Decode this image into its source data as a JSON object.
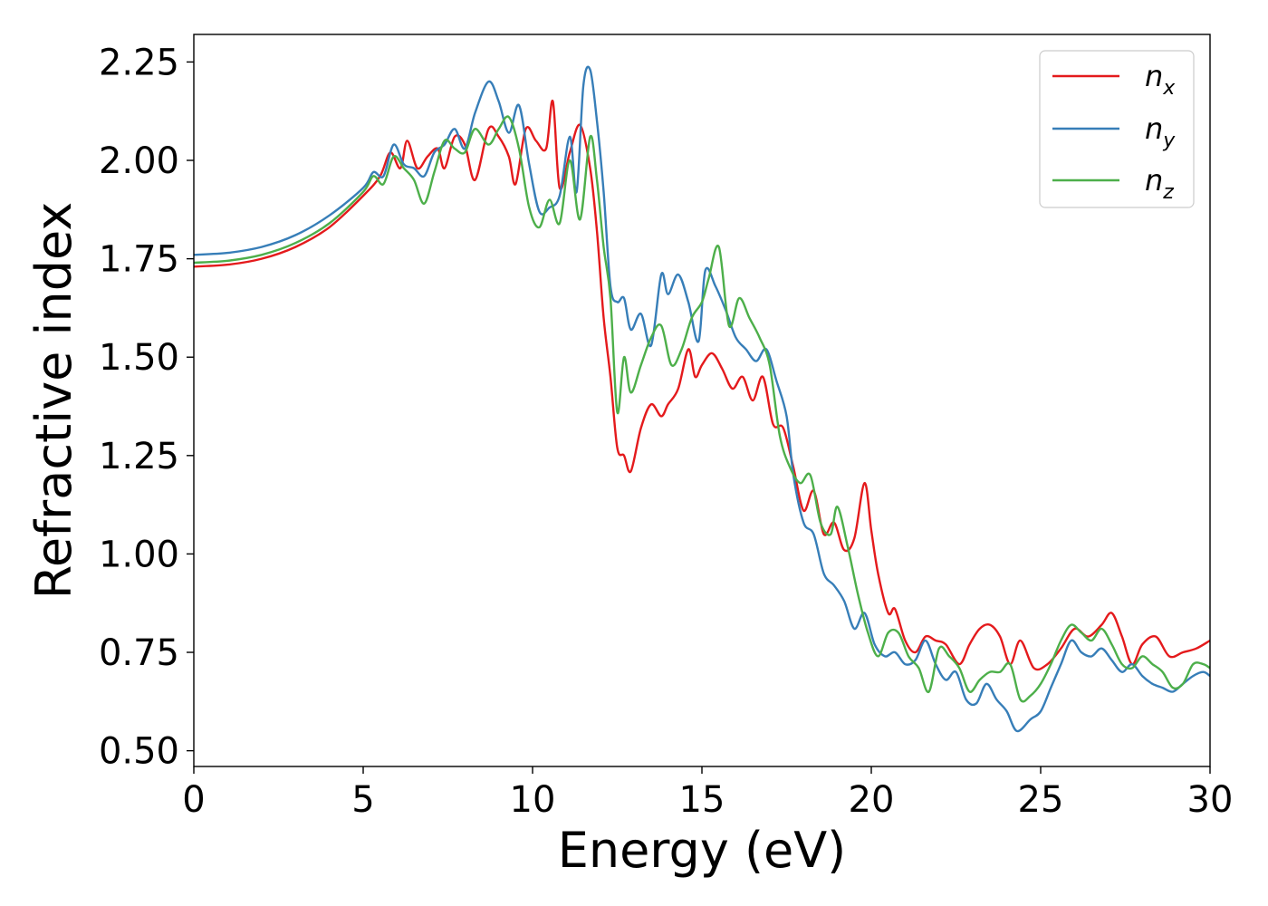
{
  "chart_data": {
    "type": "line",
    "title": "",
    "xlabel": "Energy (eV)",
    "ylabel": "Refractive index",
    "xlim": [
      0,
      30
    ],
    "ylim": [
      0.46,
      2.32
    ],
    "xticks": [
      0,
      5,
      10,
      15,
      20,
      25,
      30
    ],
    "xtick_labels": [
      "0",
      "5",
      "10",
      "15",
      "20",
      "25",
      "30"
    ],
    "yticks": [
      0.5,
      0.75,
      1.0,
      1.25,
      1.5,
      1.75,
      2.0,
      2.25
    ],
    "ytick_labels": [
      "0.50",
      "0.75",
      "1.00",
      "1.25",
      "1.50",
      "1.75",
      "2.00",
      "2.25"
    ],
    "grid": false,
    "legend_position": "top-right",
    "series": [
      {
        "name": "n",
        "sub": "x",
        "color": "#e41a1c",
        "points": [
          [
            0,
            1.73
          ],
          [
            1,
            1.735
          ],
          [
            2,
            1.75
          ],
          [
            3,
            1.78
          ],
          [
            4,
            1.83
          ],
          [
            5,
            1.91
          ],
          [
            5.5,
            1.96
          ],
          [
            5.8,
            2.02
          ],
          [
            6.1,
            1.98
          ],
          [
            6.3,
            2.05
          ],
          [
            6.6,
            1.98
          ],
          [
            6.9,
            2.01
          ],
          [
            7.2,
            2.03
          ],
          [
            7.4,
            1.98
          ],
          [
            7.7,
            2.06
          ],
          [
            8.0,
            2.04
          ],
          [
            8.3,
            1.95
          ],
          [
            8.7,
            2.08
          ],
          [
            9.0,
            2.06
          ],
          [
            9.3,
            2.01
          ],
          [
            9.5,
            1.94
          ],
          [
            9.8,
            2.08
          ],
          [
            10.1,
            2.05
          ],
          [
            10.4,
            2.03
          ],
          [
            10.6,
            2.15
          ],
          [
            10.8,
            1.93
          ],
          [
            11.1,
            2.02
          ],
          [
            11.4,
            2.09
          ],
          [
            11.7,
            1.98
          ],
          [
            11.9,
            1.82
          ],
          [
            12.1,
            1.6
          ],
          [
            12.3,
            1.45
          ],
          [
            12.5,
            1.27
          ],
          [
            12.7,
            1.25
          ],
          [
            12.9,
            1.21
          ],
          [
            13.2,
            1.32
          ],
          [
            13.5,
            1.38
          ],
          [
            13.8,
            1.35
          ],
          [
            14.0,
            1.38
          ],
          [
            14.3,
            1.42
          ],
          [
            14.6,
            1.52
          ],
          [
            14.8,
            1.45
          ],
          [
            15.0,
            1.48
          ],
          [
            15.3,
            1.51
          ],
          [
            15.6,
            1.47
          ],
          [
            15.9,
            1.42
          ],
          [
            16.2,
            1.45
          ],
          [
            16.5,
            1.39
          ],
          [
            16.8,
            1.45
          ],
          [
            17.1,
            1.33
          ],
          [
            17.4,
            1.32
          ],
          [
            17.7,
            1.22
          ],
          [
            18.0,
            1.11
          ],
          [
            18.3,
            1.16
          ],
          [
            18.6,
            1.05
          ],
          [
            18.9,
            1.08
          ],
          [
            19.2,
            1.01
          ],
          [
            19.5,
            1.04
          ],
          [
            19.8,
            1.18
          ],
          [
            20.0,
            1.06
          ],
          [
            20.2,
            0.95
          ],
          [
            20.5,
            0.85
          ],
          [
            20.7,
            0.86
          ],
          [
            21.0,
            0.78
          ],
          [
            21.3,
            0.75
          ],
          [
            21.6,
            0.79
          ],
          [
            21.9,
            0.78
          ],
          [
            22.2,
            0.77
          ],
          [
            22.6,
            0.72
          ],
          [
            22.9,
            0.77
          ],
          [
            23.2,
            0.81
          ],
          [
            23.5,
            0.82
          ],
          [
            23.8,
            0.79
          ],
          [
            24.1,
            0.72
          ],
          [
            24.4,
            0.78
          ],
          [
            24.8,
            0.71
          ],
          [
            25.2,
            0.72
          ],
          [
            25.6,
            0.76
          ],
          [
            26.0,
            0.81
          ],
          [
            26.4,
            0.79
          ],
          [
            26.8,
            0.82
          ],
          [
            27.1,
            0.85
          ],
          [
            27.4,
            0.79
          ],
          [
            27.7,
            0.72
          ],
          [
            28.0,
            0.77
          ],
          [
            28.4,
            0.79
          ],
          [
            28.8,
            0.74
          ],
          [
            29.2,
            0.75
          ],
          [
            29.6,
            0.76
          ],
          [
            30.0,
            0.78
          ]
        ]
      },
      {
        "name": "n",
        "sub": "y",
        "color": "#377eb8",
        "points": [
          [
            0,
            1.76
          ],
          [
            1,
            1.765
          ],
          [
            2,
            1.78
          ],
          [
            3,
            1.81
          ],
          [
            4,
            1.86
          ],
          [
            5,
            1.93
          ],
          [
            5.3,
            1.97
          ],
          [
            5.6,
            1.96
          ],
          [
            5.9,
            2.04
          ],
          [
            6.2,
            1.99
          ],
          [
            6.5,
            1.98
          ],
          [
            6.8,
            1.96
          ],
          [
            7.1,
            2.02
          ],
          [
            7.4,
            2.04
          ],
          [
            7.7,
            2.08
          ],
          [
            8.0,
            2.03
          ],
          [
            8.3,
            2.12
          ],
          [
            8.7,
            2.2
          ],
          [
            9.0,
            2.15
          ],
          [
            9.3,
            2.07
          ],
          [
            9.6,
            2.14
          ],
          [
            9.9,
            1.99
          ],
          [
            10.2,
            1.87
          ],
          [
            10.5,
            1.88
          ],
          [
            10.8,
            1.91
          ],
          [
            11.1,
            2.06
          ],
          [
            11.3,
            1.92
          ],
          [
            11.5,
            2.19
          ],
          [
            11.7,
            2.23
          ],
          [
            11.9,
            2.1
          ],
          [
            12.1,
            1.92
          ],
          [
            12.3,
            1.68
          ],
          [
            12.5,
            1.64
          ],
          [
            12.7,
            1.65
          ],
          [
            12.9,
            1.57
          ],
          [
            13.2,
            1.61
          ],
          [
            13.5,
            1.53
          ],
          [
            13.8,
            1.71
          ],
          [
            14.0,
            1.66
          ],
          [
            14.3,
            1.71
          ],
          [
            14.6,
            1.64
          ],
          [
            14.9,
            1.54
          ],
          [
            15.1,
            1.72
          ],
          [
            15.4,
            1.68
          ],
          [
            15.7,
            1.62
          ],
          [
            16.0,
            1.55
          ],
          [
            16.3,
            1.52
          ],
          [
            16.6,
            1.49
          ],
          [
            16.9,
            1.52
          ],
          [
            17.2,
            1.44
          ],
          [
            17.5,
            1.35
          ],
          [
            17.7,
            1.2
          ],
          [
            18.0,
            1.08
          ],
          [
            18.3,
            1.05
          ],
          [
            18.6,
            0.95
          ],
          [
            18.9,
            0.92
          ],
          [
            19.2,
            0.88
          ],
          [
            19.5,
            0.81
          ],
          [
            19.8,
            0.85
          ],
          [
            20.1,
            0.77
          ],
          [
            20.4,
            0.74
          ],
          [
            20.7,
            0.75
          ],
          [
            21.0,
            0.72
          ],
          [
            21.3,
            0.73
          ],
          [
            21.6,
            0.78
          ],
          [
            21.9,
            0.72
          ],
          [
            22.2,
            0.68
          ],
          [
            22.5,
            0.7
          ],
          [
            22.8,
            0.63
          ],
          [
            23.1,
            0.62
          ],
          [
            23.4,
            0.67
          ],
          [
            23.7,
            0.63
          ],
          [
            24.0,
            0.6
          ],
          [
            24.3,
            0.55
          ],
          [
            24.7,
            0.58
          ],
          [
            25.0,
            0.6
          ],
          [
            25.3,
            0.66
          ],
          [
            25.6,
            0.72
          ],
          [
            25.9,
            0.78
          ],
          [
            26.2,
            0.75
          ],
          [
            26.5,
            0.74
          ],
          [
            26.8,
            0.76
          ],
          [
            27.1,
            0.73
          ],
          [
            27.4,
            0.7
          ],
          [
            27.7,
            0.72
          ],
          [
            28.0,
            0.69
          ],
          [
            28.3,
            0.67
          ],
          [
            28.6,
            0.66
          ],
          [
            28.9,
            0.65
          ],
          [
            29.2,
            0.67
          ],
          [
            29.5,
            0.69
          ],
          [
            29.8,
            0.7
          ],
          [
            30.0,
            0.69
          ]
        ]
      },
      {
        "name": "n",
        "sub": "z",
        "color": "#4daf4a",
        "points": [
          [
            0,
            1.74
          ],
          [
            1,
            1.745
          ],
          [
            2,
            1.76
          ],
          [
            3,
            1.79
          ],
          [
            4,
            1.84
          ],
          [
            5,
            1.92
          ],
          [
            5.3,
            1.96
          ],
          [
            5.6,
            1.94
          ],
          [
            5.9,
            2.01
          ],
          [
            6.2,
            1.98
          ],
          [
            6.5,
            1.95
          ],
          [
            6.8,
            1.89
          ],
          [
            7.1,
            1.97
          ],
          [
            7.4,
            2.05
          ],
          [
            7.7,
            2.03
          ],
          [
            8.0,
            2.02
          ],
          [
            8.3,
            2.08
          ],
          [
            8.7,
            2.04
          ],
          [
            9.0,
            2.08
          ],
          [
            9.3,
            2.11
          ],
          [
            9.6,
            2.03
          ],
          [
            9.9,
            1.88
          ],
          [
            10.2,
            1.83
          ],
          [
            10.5,
            1.9
          ],
          [
            10.8,
            1.84
          ],
          [
            11.1,
            2.0
          ],
          [
            11.4,
            1.85
          ],
          [
            11.7,
            2.06
          ],
          [
            11.9,
            1.95
          ],
          [
            12.1,
            1.78
          ],
          [
            12.3,
            1.65
          ],
          [
            12.5,
            1.36
          ],
          [
            12.7,
            1.5
          ],
          [
            12.9,
            1.41
          ],
          [
            13.2,
            1.48
          ],
          [
            13.5,
            1.55
          ],
          [
            13.8,
            1.58
          ],
          [
            14.1,
            1.48
          ],
          [
            14.4,
            1.52
          ],
          [
            14.7,
            1.6
          ],
          [
            15.0,
            1.64
          ],
          [
            15.2,
            1.7
          ],
          [
            15.5,
            1.78
          ],
          [
            15.8,
            1.58
          ],
          [
            16.1,
            1.65
          ],
          [
            16.4,
            1.6
          ],
          [
            16.7,
            1.55
          ],
          [
            17.0,
            1.48
          ],
          [
            17.3,
            1.3
          ],
          [
            17.6,
            1.22
          ],
          [
            17.9,
            1.18
          ],
          [
            18.2,
            1.2
          ],
          [
            18.5,
            1.08
          ],
          [
            18.8,
            1.05
          ],
          [
            19.0,
            1.12
          ],
          [
            19.3,
            1.02
          ],
          [
            19.6,
            0.9
          ],
          [
            19.9,
            0.8
          ],
          [
            20.2,
            0.74
          ],
          [
            20.5,
            0.8
          ],
          [
            20.8,
            0.8
          ],
          [
            21.1,
            0.74
          ],
          [
            21.4,
            0.71
          ],
          [
            21.7,
            0.65
          ],
          [
            22.0,
            0.76
          ],
          [
            22.3,
            0.74
          ],
          [
            22.6,
            0.71
          ],
          [
            22.9,
            0.65
          ],
          [
            23.2,
            0.68
          ],
          [
            23.5,
            0.7
          ],
          [
            23.8,
            0.7
          ],
          [
            24.1,
            0.72
          ],
          [
            24.4,
            0.63
          ],
          [
            24.7,
            0.64
          ],
          [
            25.0,
            0.67
          ],
          [
            25.3,
            0.72
          ],
          [
            25.6,
            0.78
          ],
          [
            25.9,
            0.82
          ],
          [
            26.2,
            0.8
          ],
          [
            26.5,
            0.78
          ],
          [
            26.8,
            0.81
          ],
          [
            27.1,
            0.77
          ],
          [
            27.4,
            0.72
          ],
          [
            27.7,
            0.71
          ],
          [
            28.0,
            0.74
          ],
          [
            28.3,
            0.72
          ],
          [
            28.6,
            0.7
          ],
          [
            28.9,
            0.66
          ],
          [
            29.2,
            0.67
          ],
          [
            29.5,
            0.72
          ],
          [
            29.8,
            0.72
          ],
          [
            30.0,
            0.71
          ]
        ]
      }
    ]
  }
}
